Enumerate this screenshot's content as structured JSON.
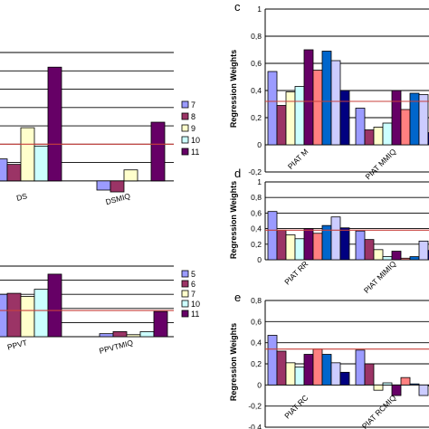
{
  "colors": {
    "s7": "#9b9bff",
    "s8": "#9b3466",
    "s9": "#ffffcc",
    "s10": "#ccffff",
    "s11": "#660066",
    "s12": "#ff8080",
    "s13": "#0066cc",
    "s14": "#ccccff",
    "s15": "#000080",
    "reference_line": "#c8403c"
  },
  "chart_data": [
    {
      "id": "top-left",
      "type": "bar",
      "panel_label": "",
      "categories": [
        "DS",
        "DSMIQ"
      ],
      "series": [
        {
          "name": "7",
          "values": [
            0.12,
            -0.05
          ]
        },
        {
          "name": "8",
          "values": [
            0.09,
            -0.06
          ]
        },
        {
          "name": "9",
          "values": [
            0.29,
            0.06
          ]
        },
        {
          "name": "10",
          "values": [
            0.19,
            null
          ]
        },
        {
          "name": "11",
          "values": [
            0.62,
            0.32
          ]
        }
      ],
      "reference_line": 0.2,
      "ylim": [
        -0.05,
        0.7
      ],
      "ylabel": "",
      "legend": "right"
    },
    {
      "id": "bottom-left",
      "type": "bar",
      "panel_label": "",
      "categories": [
        "PPVT",
        "PPVTMIQ"
      ],
      "series": [
        {
          "name": "5",
          "values": [
            0.42,
            0.03
          ]
        },
        {
          "name": "6",
          "values": [
            0.43,
            0.05
          ]
        },
        {
          "name": "7",
          "values": [
            0.4,
            0.02
          ]
        },
        {
          "name": "10",
          "values": [
            0.47,
            0.05
          ]
        },
        {
          "name": "11",
          "values": [
            0.62,
            0.25
          ]
        }
      ],
      "reference_line": 0.26,
      "ylim": [
        0,
        0.7
      ],
      "ylabel": "",
      "legend": "right"
    },
    {
      "id": "c",
      "type": "bar",
      "panel_label": "c",
      "categories": [
        "PIAT M",
        "PIAT MMIQ"
      ],
      "series": [
        {
          "name": "",
          "values": [
            0.54,
            0.27
          ]
        },
        {
          "name": "",
          "values": [
            0.29,
            0.11
          ]
        },
        {
          "name": "",
          "values": [
            0.39,
            0.13
          ]
        },
        {
          "name": "",
          "values": [
            0.43,
            0.16
          ]
        },
        {
          "name": "",
          "values": [
            0.7,
            0.4
          ]
        },
        {
          "name": "",
          "values": [
            0.55,
            0.26
          ]
        },
        {
          "name": "",
          "values": [
            0.69,
            0.38
          ]
        },
        {
          "name": "",
          "values": [
            0.62,
            0.37
          ]
        },
        {
          "name": "",
          "values": [
            0.4,
            0.09
          ]
        }
      ],
      "reference_line": 0.32,
      "yticks": [
        -0.2,
        0,
        0.2,
        0.4,
        0.6,
        0.8,
        1
      ],
      "ylim": [
        -0.2,
        1
      ],
      "ylabel": "Regression Weights"
    },
    {
      "id": "d",
      "type": "bar",
      "panel_label": "d",
      "categories": [
        "PIAT RR",
        "PIAT MIMIQ"
      ],
      "series": [
        {
          "name": "",
          "values": [
            0.62,
            0.37
          ]
        },
        {
          "name": "",
          "values": [
            0.38,
            0.26
          ]
        },
        {
          "name": "",
          "values": [
            0.32,
            0.13
          ]
        },
        {
          "name": "",
          "values": [
            0.27,
            0.04
          ]
        },
        {
          "name": "",
          "values": [
            0.4,
            0.11
          ]
        },
        {
          "name": "",
          "values": [
            0.34,
            0.02
          ]
        },
        {
          "name": "",
          "values": [
            0.44,
            0.04
          ]
        },
        {
          "name": "",
          "values": [
            0.55,
            0.24
          ]
        },
        {
          "name": "",
          "values": [
            0.41,
            0.12
          ]
        }
      ],
      "reference_line": 0.38,
      "yticks": [
        0,
        0.2,
        0.4,
        0.6,
        0.8,
        1
      ],
      "ylim": [
        0,
        1
      ],
      "ylabel": "Regression Weights"
    },
    {
      "id": "e",
      "type": "bar",
      "panel_label": "e",
      "categories": [
        "PIAT RC",
        "PIAT RCMIQ"
      ],
      "series": [
        {
          "name": "",
          "values": [
            0.47,
            0.33
          ]
        },
        {
          "name": "",
          "values": [
            0.32,
            0.2
          ]
        },
        {
          "name": "",
          "values": [
            0.21,
            -0.05
          ]
        },
        {
          "name": "",
          "values": [
            0.17,
            0.02
          ]
        },
        {
          "name": "",
          "values": [
            0.29,
            -0.1
          ]
        },
        {
          "name": "",
          "values": [
            0.34,
            0.07
          ]
        },
        {
          "name": "",
          "values": [
            0.29,
            0.01
          ]
        },
        {
          "name": "",
          "values": [
            0.21,
            -0.1
          ]
        },
        {
          "name": "",
          "values": [
            0.12,
            0.0
          ]
        }
      ],
      "reference_line": 0.34,
      "yticks": [
        -0.4,
        -0.2,
        0,
        0.2,
        0.4,
        0.6,
        0.8
      ],
      "ylim": [
        -0.4,
        0.8
      ],
      "ylabel": "Regression Weights"
    }
  ]
}
